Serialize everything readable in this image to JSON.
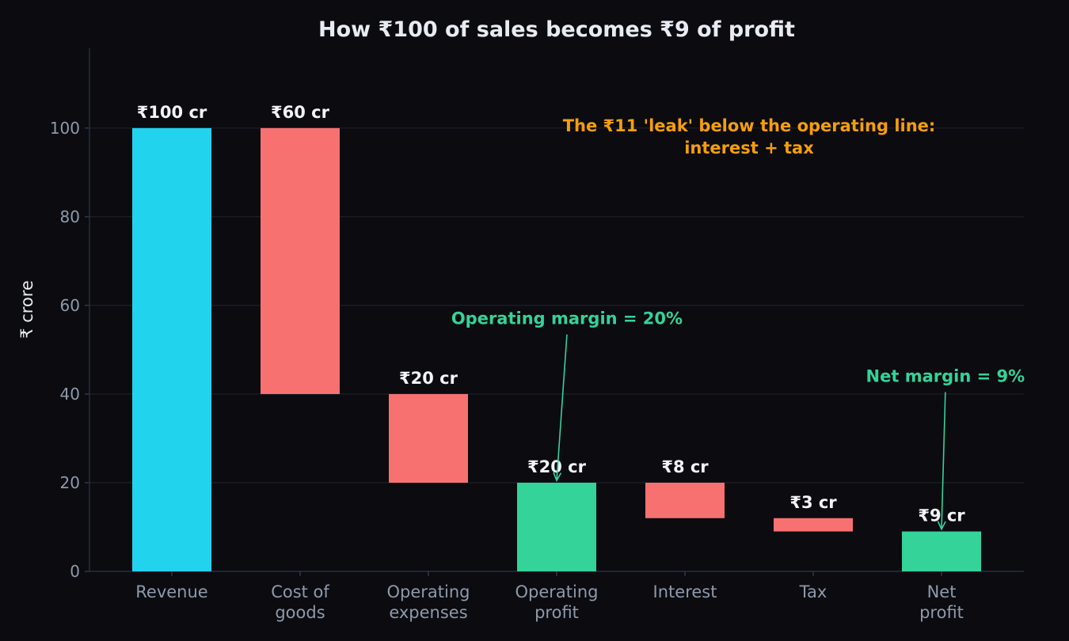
{
  "chart_data": {
    "type": "bar",
    "subtype": "waterfall",
    "title": "How ₹100 of sales becomes ₹9 of profit",
    "xlabel": "",
    "ylabel": "₹ crore",
    "ylim": [
      0,
      118
    ],
    "yticks": [
      0,
      20,
      40,
      60,
      80,
      100
    ],
    "grid": true,
    "legend": "none",
    "categories": [
      [
        "Revenue"
      ],
      [
        "Cost of",
        "goods"
      ],
      [
        "Operating",
        "expenses"
      ],
      [
        "Operating",
        "profit"
      ],
      [
        "Interest"
      ],
      [
        "Tax"
      ],
      [
        "Net",
        "profit"
      ]
    ],
    "bars": [
      {
        "start": 0,
        "end": 100,
        "kind": "total",
        "label": "₹100 cr"
      },
      {
        "start": 40,
        "end": 100,
        "kind": "decrease",
        "label": "₹60 cr"
      },
      {
        "start": 20,
        "end": 40,
        "kind": "decrease",
        "label": "₹20 cr"
      },
      {
        "start": 0,
        "end": 20,
        "kind": "subtotal",
        "label": "₹20 cr"
      },
      {
        "start": 12,
        "end": 20,
        "kind": "decrease",
        "label": "₹8 cr"
      },
      {
        "start": 9,
        "end": 12,
        "kind": "decrease",
        "label": "₹3 cr"
      },
      {
        "start": 0,
        "end": 9,
        "kind": "subtotal",
        "label": "₹9 cr"
      }
    ],
    "colors": {
      "total": "#22d3ee",
      "decrease": "#f87171",
      "subtotal": "#34d399",
      "annotation_green": "#34d399",
      "annotation_orange": "#f59e0b"
    },
    "annotations": [
      {
        "lines": [
          "The ₹11 'leak' below the operating line:",
          "interest + tax"
        ],
        "x": 4.5,
        "y": 98,
        "color": "orange",
        "arrow_to": null
      },
      {
        "lines": [
          "Operating margin = 20%"
        ],
        "x": 3.08,
        "y": 57,
        "color": "green",
        "arrow_to": [
          3,
          20.5
        ]
      },
      {
        "lines": [
          "Net margin = 9%"
        ],
        "x": 6.03,
        "y": 44,
        "color": "green",
        "arrow_to": [
          6,
          9.5
        ]
      }
    ]
  }
}
